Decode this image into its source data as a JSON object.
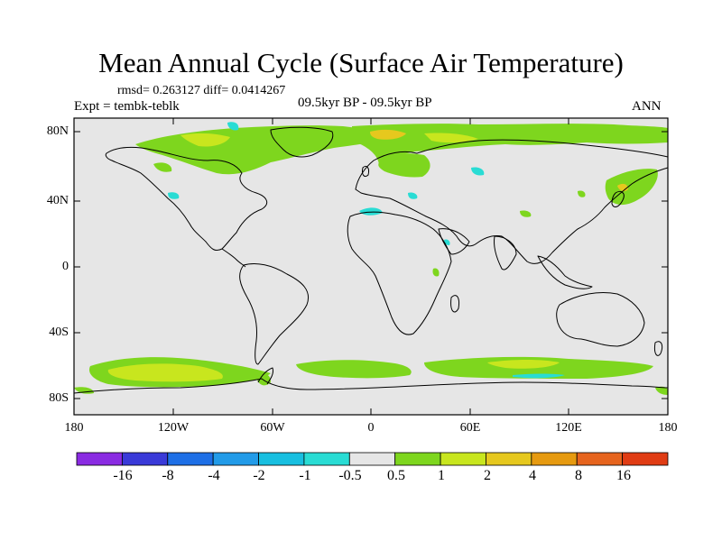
{
  "title": "Mean Annual Cycle (Surface Air Temperature)",
  "stats": "rmsd= 0.263127 diff= 0.0414267",
  "experiment": "Expt = tembk-teblk",
  "period": "09.5kyr BP - 09.5kyr BP",
  "season": "ANN",
  "lat_ticks": [
    "80N",
    "40N",
    "0",
    "40S",
    "80S"
  ],
  "lon_ticks": [
    "180",
    "120W",
    "60W",
    "0",
    "60E",
    "120E",
    "180"
  ],
  "colorbar": {
    "labels": [
      "-16",
      "-8",
      "-4",
      "-2",
      "-1",
      "-0.5",
      "0.5",
      "1",
      "2",
      "4",
      "8",
      "16"
    ],
    "colors": [
      "#8a2be2",
      "#3a3ad8",
      "#1e6fe6",
      "#229be8",
      "#18bfe0",
      "#29dcd4",
      "#e6e6e6",
      "#7ed61e",
      "#c8e61e",
      "#e6c81e",
      "#e69a10",
      "#e6641e",
      "#e03c14"
    ]
  }
}
